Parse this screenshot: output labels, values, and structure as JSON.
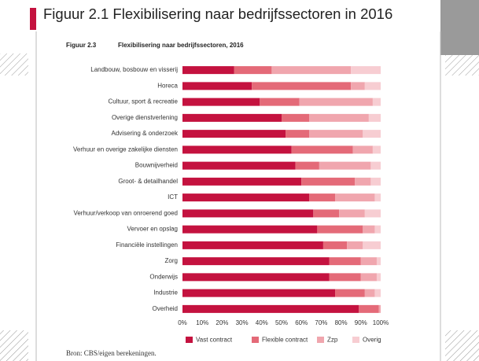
{
  "slide": {
    "title": "Figuur 2.1 Flexibilisering naar bedrijfssectoren in 2016"
  },
  "chart_data": {
    "type": "stacked-barh",
    "figure_label": "Figuur 2.3",
    "title": "Flexibilisering naar bedrijfssectoren, 2016",
    "source": "Bron: CBS/eigen berekeningen.",
    "categories": [
      "Landbouw, bosbouw en visserij",
      "Horeca",
      "Cultuur, sport & recreatie",
      "Overige dienstverlening",
      "Advisering & onderzoek",
      "Verhuur en overige zakelijke diensten",
      "Bouwnijverheid",
      "Groot- & detailhandel",
      "ICT",
      "Verhuur/verkoop van onroerend goed",
      "Vervoer en opslag",
      "Financiële instellingen",
      "Zorg",
      "Onderwijs",
      "Industrie",
      "Overheid"
    ],
    "series": [
      {
        "name": "Vast contract",
        "color": "#c4123f",
        "values": [
          26,
          35,
          39,
          50,
          52,
          55,
          57,
          60,
          64,
          66,
          68,
          71,
          74,
          74,
          77,
          89
        ]
      },
      {
        "name": "Flexible contract",
        "color": "#e46a78",
        "values": [
          19,
          50,
          20,
          14,
          12,
          31,
          12,
          27,
          13,
          13,
          23,
          12,
          16,
          16,
          15,
          10
        ]
      },
      {
        "name": "Zzp",
        "color": "#f0a6ae",
        "values": [
          40,
          7,
          37,
          30,
          27,
          10,
          26,
          8,
          20,
          13,
          6,
          8,
          8,
          8,
          5,
          1
        ]
      },
      {
        "name": "Overig",
        "color": "#f7cdd2",
        "values": [
          15,
          8,
          4,
          6,
          9,
          4,
          5,
          5,
          3,
          8,
          3,
          9,
          2,
          2,
          3,
          0
        ]
      }
    ],
    "xlim": [
      0,
      100
    ],
    "xticks": [
      {
        "value": 0,
        "label": "0%"
      },
      {
        "value": 10,
        "label": "10%"
      },
      {
        "value": 20,
        "label": "20%"
      },
      {
        "value": 30,
        "label": "30%"
      },
      {
        "value": 40,
        "label": "40%"
      },
      {
        "value": 50,
        "label": "50%"
      },
      {
        "value": 60,
        "label": "60%"
      },
      {
        "value": 70,
        "label": "70%"
      },
      {
        "value": 80,
        "label": "80%"
      },
      {
        "value": 90,
        "label": "90%"
      },
      {
        "value": 100,
        "label": "100%"
      }
    ],
    "grid": false
  }
}
